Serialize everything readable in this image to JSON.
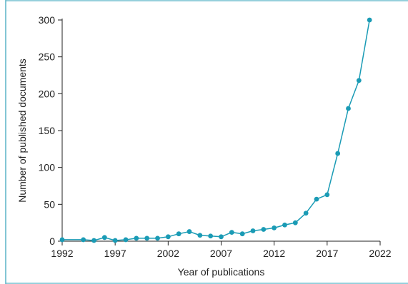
{
  "chart_data": {
    "type": "line",
    "xlabel": "Year of publications",
    "ylabel": "Number of published documents",
    "xlim": [
      1992,
      2022
    ],
    "ylim": [
      0,
      300
    ],
    "x_ticks": [
      1992,
      1997,
      2002,
      2007,
      2012,
      2017,
      2022
    ],
    "y_ticks": [
      0,
      50,
      100,
      150,
      200,
      250,
      300
    ],
    "x_tick_labels": [
      "1992",
      "1997",
      "2002",
      "2007",
      "2012",
      "2017",
      "2022"
    ],
    "y_tick_labels": [
      "0",
      "50",
      "100",
      "150",
      "200",
      "250",
      "300"
    ],
    "grid": false,
    "series": [
      {
        "x": [
          1992,
          1994,
          1995,
          1996,
          1997,
          1998,
          1999,
          2000,
          2001,
          2002,
          2003,
          2004,
          2005,
          2006,
          2007,
          2008,
          2009,
          2010,
          2011,
          2012,
          2013,
          2014,
          2015,
          2016,
          2017,
          2018,
          2019,
          2020,
          2021
        ],
        "values": [
          2,
          2,
          1,
          5,
          1,
          2,
          4,
          4,
          4,
          6,
          10,
          13,
          8,
          7,
          6,
          12,
          10,
          14,
          16,
          18,
          22,
          25,
          38,
          57,
          63,
          119,
          180,
          218,
          300
        ]
      }
    ],
    "colors": {
      "series": "#1a9bb5",
      "frame": "#58b4c6",
      "axis": "#222222"
    }
  }
}
